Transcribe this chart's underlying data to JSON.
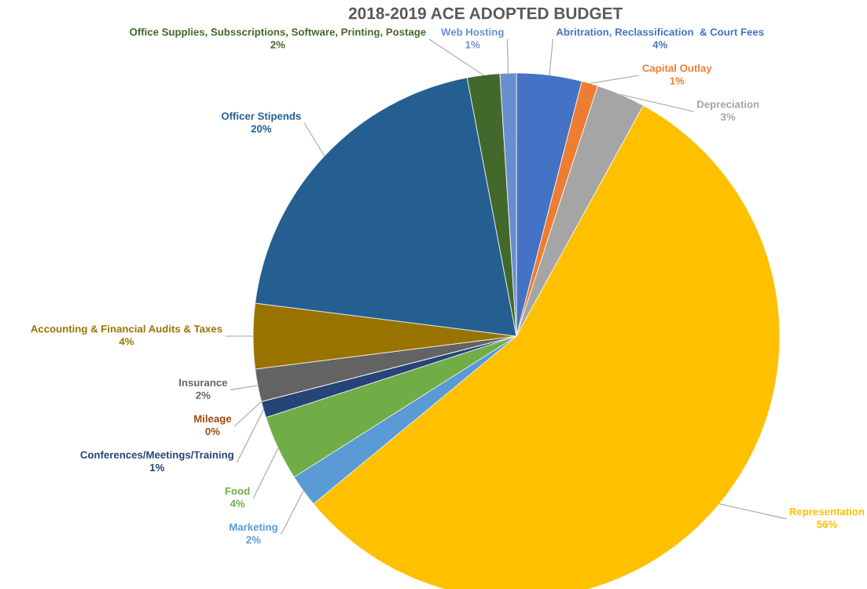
{
  "chart_data": {
    "type": "pie",
    "title": "2018-2019 ACE ADOPTED BUDGET",
    "categories": [
      "Abritration, Reclassification  & Court Fees",
      "Capital Outlay",
      "Depreciation",
      "Representation",
      "Marketing",
      "Food",
      "Conferences/Meetings/Training",
      "Mileage",
      "Insurance",
      "Accounting & Financial Audits & Taxes",
      "Officer Stipends",
      "Office Supplies, Subsscriptions, Software, Printing, Postage",
      "Web Hosting"
    ],
    "values": [
      4,
      1,
      3,
      56,
      2,
      4,
      1,
      0,
      2,
      4,
      20,
      2,
      1
    ],
    "value_labels": [
      "4%",
      "1%",
      "3%",
      "56%",
      "2%",
      "4%",
      "1%",
      "0%",
      "2%",
      "4%",
      "20%",
      "2%",
      "1%"
    ],
    "colors": [
      "#4472c4",
      "#ed7d31",
      "#a5a5a5",
      "#ffc000",
      "#5b9bd5",
      "#70ad47",
      "#264478",
      "#9e480e",
      "#636363",
      "#997300",
      "#255e91",
      "#43682b",
      "#698ed0"
    ]
  }
}
